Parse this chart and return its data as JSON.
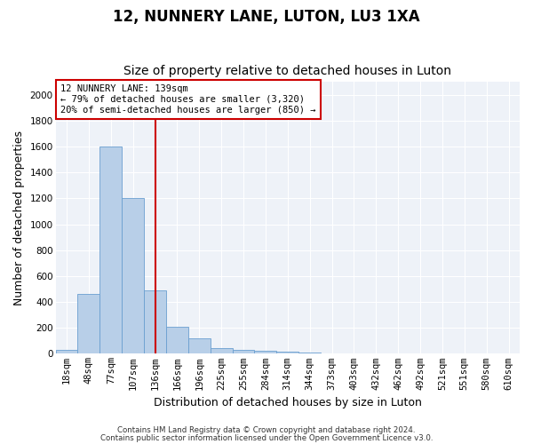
{
  "title": "12, NUNNERY LANE, LUTON, LU3 1XA",
  "subtitle": "Size of property relative to detached houses in Luton",
  "xlabel": "Distribution of detached houses by size in Luton",
  "ylabel": "Number of detached properties",
  "categories": [
    "18sqm",
    "48sqm",
    "77sqm",
    "107sqm",
    "136sqm",
    "166sqm",
    "196sqm",
    "225sqm",
    "255sqm",
    "284sqm",
    "314sqm",
    "344sqm",
    "373sqm",
    "403sqm",
    "432sqm",
    "462sqm",
    "492sqm",
    "521sqm",
    "551sqm",
    "580sqm",
    "610sqm"
  ],
  "values": [
    30,
    460,
    1600,
    1200,
    490,
    210,
    120,
    45,
    30,
    20,
    15,
    10,
    0,
    0,
    0,
    0,
    0,
    0,
    0,
    0,
    0
  ],
  "bar_color": "#b8cfe8",
  "bar_edge_color": "#6a9fd0",
  "vline_index": 4,
  "vline_color": "#cc0000",
  "annotation_text": "12 NUNNERY LANE: 139sqm\n← 79% of detached houses are smaller (3,320)\n20% of semi-detached houses are larger (850) →",
  "annotation_box_edgecolor": "#cc0000",
  "ylim": [
    0,
    2100
  ],
  "yticks": [
    0,
    200,
    400,
    600,
    800,
    1000,
    1200,
    1400,
    1600,
    1800,
    2000
  ],
  "bg_color": "#eef2f8",
  "footer_line1": "Contains HM Land Registry data © Crown copyright and database right 2024.",
  "footer_line2": "Contains public sector information licensed under the Open Government Licence v3.0.",
  "title_fontsize": 12,
  "subtitle_fontsize": 10,
  "axis_label_fontsize": 9,
  "tick_fontsize": 7.5,
  "annotation_fontsize": 7.5
}
